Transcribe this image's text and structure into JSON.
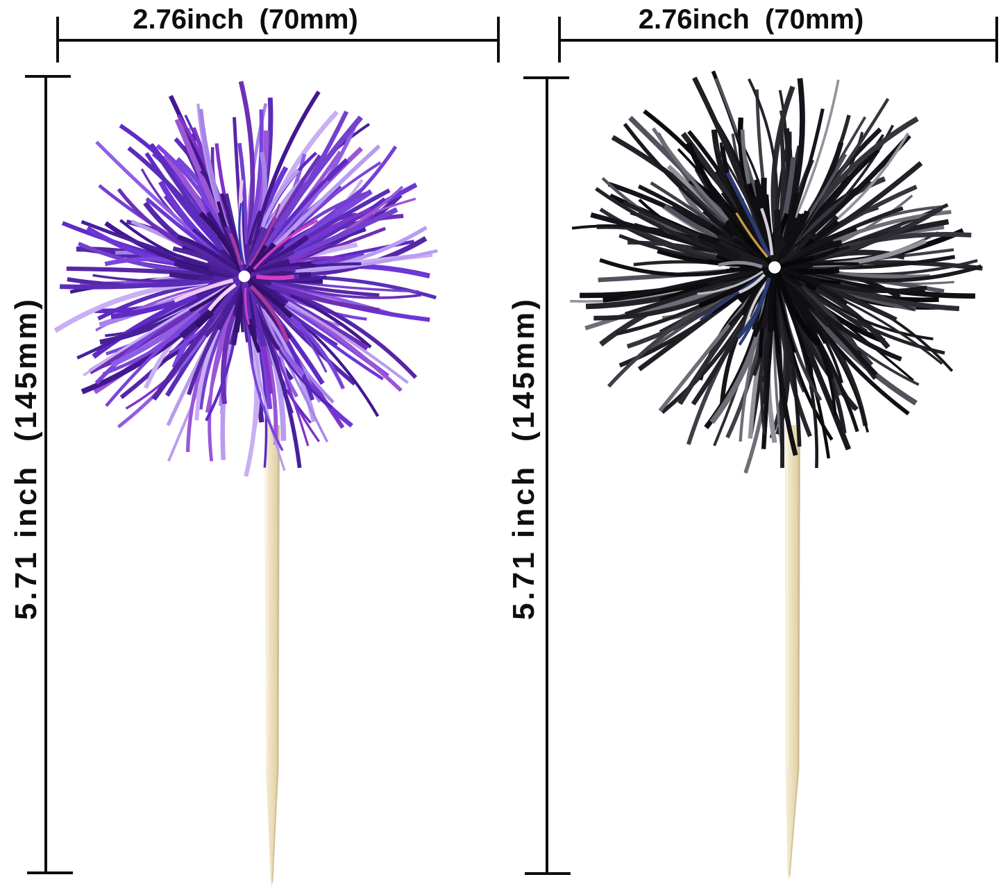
{
  "page": {
    "background": "#ffffff",
    "description": "Two tinsel pom pom cocktail/cupcake picks with dimension annotations"
  },
  "dimensions": {
    "line_color": "#0e0e0e",
    "top_left": {
      "label": "2.76inch  (70mm)"
    },
    "top_right": {
      "label": "2.76inch  (70mm)"
    },
    "side_left": {
      "label": "5.71 inch  (145mm)"
    },
    "side_middle": {
      "label": "5.71 inch  (145mm)"
    }
  },
  "materials": {
    "wood_stops": [
      "#f7f0dc",
      "#ecdfbe",
      "#e3d2a8",
      "#cfbd92"
    ],
    "wood_edge": "#c9b68c",
    "wood_highlight": "#faf4e4"
  },
  "products": {
    "left_pick": {
      "name": "purple-tinsel-pompom-pick",
      "pom_palette": [
        "#5f2bc4",
        "#6d36d6",
        "#5527a8",
        "#48209c",
        "#7b44dc",
        "#8e5fe4",
        "#a685ea",
        "#b99cef",
        "#8033c9",
        "#6d2fb5",
        "#43188f",
        "#c9aff4",
        "#9a56d6",
        "#5a2db8",
        "#7440cf"
      ],
      "pom_core_palette": [
        "#3c1683",
        "#471d98",
        "#54249f",
        "#331069",
        "#5f2bb4",
        "#41197e"
      ],
      "glint_palette": [
        "#d23fc4",
        "#a83a9e",
        "#2f3fc0",
        "#efc9f2",
        "#f2d8f5"
      ]
    },
    "right_pick": {
      "name": "black-tinsel-pompom-pick",
      "pom_palette": [
        "#111114",
        "#1a1a1e",
        "#222228",
        "#2c2c33",
        "#17171b",
        "#0c0c0f",
        "#35353d",
        "#3f3f47",
        "#52525c",
        "#6e6e78",
        "#93939c",
        "#26262c",
        "#1f1f24",
        "#14141a"
      ],
      "pom_core_palette": [
        "#08080a",
        "#101013",
        "#16161a",
        "#0d0d10",
        "#1c1c20"
      ],
      "glint_palette": [
        "#b9b9c2",
        "#d0d0d6",
        "#2b3a72",
        "#c99b3f",
        "#8a8a94"
      ]
    }
  }
}
